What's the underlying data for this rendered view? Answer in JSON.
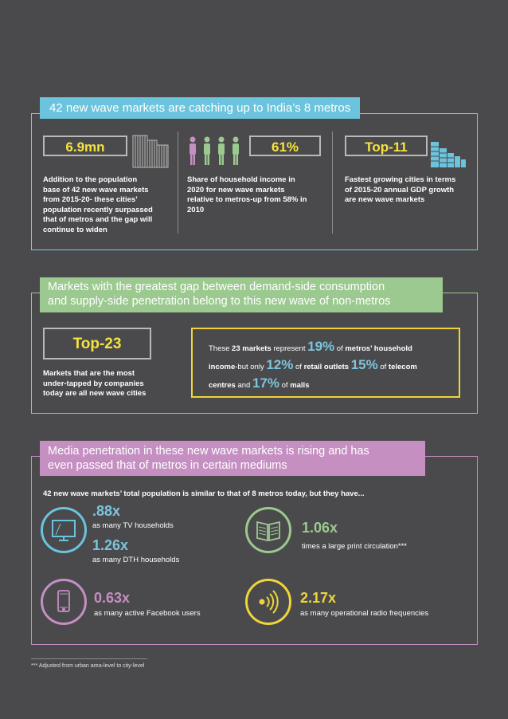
{
  "section1": {
    "banner": "42 new wave markets are catching up to India’s 8 metros",
    "stat1": {
      "value": "6.9mn",
      "desc": [
        "Addition to the population",
        "base of 42 new wave markets",
        "from 2015-20- these cities’",
        "population recently surpassed",
        "that of metros and the gap will",
        "continue to widen"
      ]
    },
    "stat2": {
      "value": "61%",
      "desc": [
        "Share of household income in",
        "2020 for new wave markets",
        "relative to metros-up from 58% in",
        "2010"
      ]
    },
    "stat3": {
      "value": "Top-11",
      "desc": [
        "Fastest growing cities in terms",
        "of 2015-20 annual GDP growth",
        "are new wave markets"
      ]
    }
  },
  "section2": {
    "banner_line1": "Markets with the greatest gap between demand-side consumption",
    "banner_line2": "and supply-side penetration belong to this new wave of non-metros",
    "stat": {
      "value": "Top-23",
      "desc": [
        "Markets that are the most",
        "under-tapped by companies",
        "today are all new wave cities"
      ]
    },
    "box": {
      "t1": "These ",
      "t2": "23 markets",
      "t3": " represent ",
      "p1": "19%",
      "t4": " of ",
      "t5": "metros’ household",
      "t6": "income",
      "t7": "-but only ",
      "p2": "12%",
      "t8": " of ",
      "t9": "retail outlets ",
      "p3": "15%",
      "t10": " of ",
      "t11": "telecom",
      "t12": "centres",
      "t13": " and ",
      "p4": "17%",
      "t14": " of ",
      "t15": "malls"
    }
  },
  "section3": {
    "banner_line1": "Media penetration in these new wave markets is rising and has",
    "banner_line2": "even passed that of metros in certain mediums",
    "intro": "42 new wave markets’ total population is similar to that of 8 metros today, but they have...",
    "tv": {
      "value": ".88x",
      "desc": "as many TV households"
    },
    "dth": {
      "value": "1.26x",
      "desc": "as many DTH households"
    },
    "print": {
      "value": "1.06x",
      "desc": "times a large print circulation***"
    },
    "facebook": {
      "value": "0.63x",
      "desc": "as many active Facebook users"
    },
    "radio": {
      "value": "2.17x",
      "desc": "as many operational radio frequencies"
    }
  },
  "footnote": "*** Adjusted from urban area-level to city-level",
  "colors": {
    "bg": "#4a4a4c",
    "blue": "#6cc3dd",
    "green": "#9bc98f",
    "purple": "#c58fc2",
    "yellow": "#f0d43a"
  },
  "icons": [
    "buildings-icon",
    "people-icon",
    "growth-buildings-icon",
    "tv-icon",
    "book-icon",
    "phone-icon",
    "radio-icon"
  ]
}
